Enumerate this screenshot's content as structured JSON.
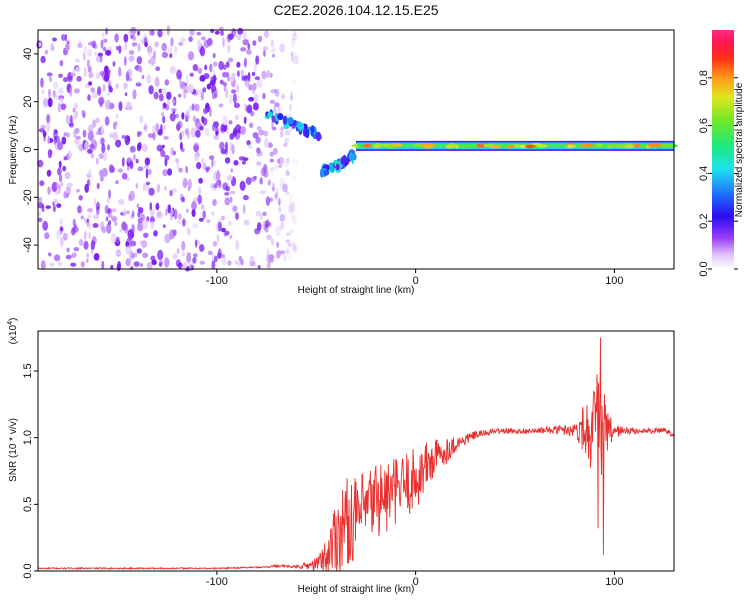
{
  "title": "C2E2.2026.104.12.15.E25",
  "chart_data": [
    {
      "type": "heatmap",
      "panel": "spectrogram",
      "xlabel": "Height of straight line (km)",
      "ylabel": "Frequency (Hz)",
      "xlim": [
        -190,
        130
      ],
      "ylim": [
        -50,
        50
      ],
      "xticks": [
        -100,
        0,
        100
      ],
      "yticks": [
        -40,
        -20,
        0,
        20,
        40
      ],
      "colorbar": {
        "label": "Normalized spectral amplitude",
        "range": [
          0.0,
          1.0
        ],
        "ticks": [
          "0.0",
          "0.2",
          "0.4",
          "0.6",
          "0.8"
        ]
      },
      "features": [
        {
          "region": "noise",
          "x_range": [
            -190,
            -60
          ],
          "freq_range": [
            -50,
            50
          ],
          "amplitude": 0.1
        },
        {
          "region": "converging_branch_upper",
          "x": [
            -76,
            -60,
            -48
          ],
          "freq": [
            15,
            10,
            6
          ],
          "amplitude": 0.4
        },
        {
          "region": "converging_branch_lower",
          "x": [
            -48,
            -38,
            -30
          ],
          "freq": [
            -10,
            -6,
            -2
          ],
          "amplitude": 0.45
        },
        {
          "region": "signal_band",
          "x_range": [
            -30,
            130
          ],
          "freq": 1.5,
          "amplitude": 0.75
        }
      ]
    },
    {
      "type": "line",
      "panel": "snr",
      "xlabel": "Height of straight line (km)",
      "ylabel": "SNR (10 * v/v)",
      "scale_label": "(x10",
      "scale_exp": "4",
      "units_scale": 10000,
      "xlim": [
        -190,
        130
      ],
      "ylim": [
        0,
        1.8
      ],
      "xticks": [
        -100,
        0,
        100
      ],
      "yticks": [
        "0.0",
        "0.5",
        "1.0",
        "1.5"
      ],
      "series": [
        {
          "name": "SNR",
          "color": "#e8312f",
          "x": [
            -190,
            -150,
            -100,
            -75,
            -70,
            -60,
            -50,
            -45,
            -40,
            -35,
            -30,
            -25,
            -20,
            -15,
            -10,
            -5,
            0,
            5,
            10,
            20,
            30,
            40,
            50,
            60,
            70,
            80,
            85,
            90,
            92,
            94,
            96,
            100,
            110,
            120,
            125,
            130
          ],
          "y": [
            0.02,
            0.02,
            0.02,
            0.03,
            0.04,
            0.03,
            0.05,
            0.1,
            0.28,
            0.36,
            0.4,
            0.45,
            0.55,
            0.55,
            0.6,
            0.65,
            0.68,
            0.78,
            0.85,
            0.95,
            1.02,
            1.05,
            1.05,
            1.05,
            1.06,
            1.06,
            1.08,
            1.04,
            0.95,
            1.05,
            1.03,
            1.05,
            1.05,
            1.05,
            1.06,
            1.02
          ],
          "noise_amplitude": [
            0.005,
            0.005,
            0.005,
            0.005,
            0.01,
            0.01,
            0.05,
            0.15,
            0.3,
            0.35,
            0.3,
            0.3,
            0.3,
            0.3,
            0.25,
            0.25,
            0.25,
            0.2,
            0.15,
            0.06,
            0.03,
            0.02,
            0.02,
            0.02,
            0.03,
            0.05,
            0.2,
            0.35,
            0.7,
            0.6,
            0.2,
            0.05,
            0.02,
            0.02,
            0.02,
            0.02
          ],
          "peaks": [
            {
              "x": 93,
              "y": 1.75
            },
            {
              "x": 94.5,
              "y": 0.12
            }
          ]
        }
      ]
    }
  ]
}
